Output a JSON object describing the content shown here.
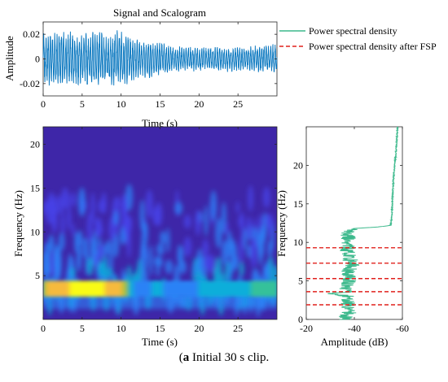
{
  "caption": {
    "label": "a",
    "text": " Initial 30 s clip."
  },
  "chart_data": [
    {
      "type": "line",
      "title": "Signal and Scalogram",
      "xlabel": "Time (s)",
      "ylabel": "Amplitude",
      "xlim": [
        0,
        30
      ],
      "ylim": [
        -0.03,
        0.03
      ],
      "xticks": [
        0,
        5,
        10,
        15,
        20,
        25
      ],
      "yticks": [
        -0.02,
        0,
        0.02
      ],
      "ytick_labels": [
        "-0.02",
        "0",
        "0.02"
      ],
      "series_color": "#0072BD",
      "envelope": {
        "t": [
          0,
          2,
          4,
          6,
          8,
          10,
          12,
          14,
          16,
          18,
          20,
          22,
          24,
          26,
          28,
          30
        ],
        "amp": [
          0.021,
          0.024,
          0.022,
          0.023,
          0.022,
          0.024,
          0.017,
          0.016,
          0.012,
          0.01,
          0.011,
          0.01,
          0.011,
          0.01,
          0.012,
          0.012
        ]
      },
      "peak_frequency_hz": 3.5
    },
    {
      "type": "heatmap",
      "xlabel": "Time (s)",
      "ylabel": "Frequency (Hz)",
      "xlim": [
        0,
        30
      ],
      "ylim": [
        0,
        22
      ],
      "xticks": [
        0,
        5,
        10,
        15,
        20,
        25
      ],
      "yticks": [
        5,
        10,
        15,
        20
      ],
      "colormap": [
        "#3E26A8",
        "#4743E8",
        "#2C82F6",
        "#0BAEDA",
        "#36C19A",
        "#A9C03F",
        "#F6BA3C",
        "#F9FB15"
      ],
      "band_center_hz": 3.5,
      "band_intensity": {
        "t": [
          0,
          2,
          4,
          6,
          8,
          10,
          11,
          12,
          14,
          15,
          16,
          18,
          20,
          22,
          24,
          26,
          28,
          30
        ],
        "v": [
          0.78,
          0.88,
          0.97,
          0.98,
          0.92,
          0.8,
          0.55,
          0.3,
          0.35,
          0.45,
          0.25,
          0.25,
          0.35,
          0.42,
          0.38,
          0.45,
          0.58,
          0.5
        ]
      }
    },
    {
      "type": "line",
      "xlabel": "Amplitude (dB)",
      "ylabel": "Frequency (Hz)",
      "xlim": [
        -20,
        -60
      ],
      "ylim": [
        0,
        25
      ],
      "xticks": [
        -20,
        -40,
        -60
      ],
      "yticks": [
        0,
        5,
        10,
        15,
        20
      ],
      "series": [
        {
          "name": "Power spectral density",
          "color": "#3CB98C",
          "freq": [
            0,
            1,
            2,
            3,
            3.4,
            3.6,
            4,
            5,
            6,
            7,
            8,
            9,
            10,
            11,
            11.8,
            12.0,
            12.2,
            13,
            15,
            18,
            20,
            22,
            25
          ],
          "db": [
            -36,
            -38,
            -37,
            -38,
            -30,
            -38,
            -37,
            -38,
            -37,
            -39,
            -38,
            -37,
            -38,
            -37,
            -40,
            -50,
            -55,
            -55.5,
            -55.8,
            -56.2,
            -56.8,
            -57.4,
            -58
          ]
        }
      ],
      "markers": {
        "name": "Power spectral density after FSP",
        "color": "#E0201C",
        "freq": [
          1.9,
          3.6,
          5.3,
          7.3,
          9.3
        ]
      }
    }
  ]
}
